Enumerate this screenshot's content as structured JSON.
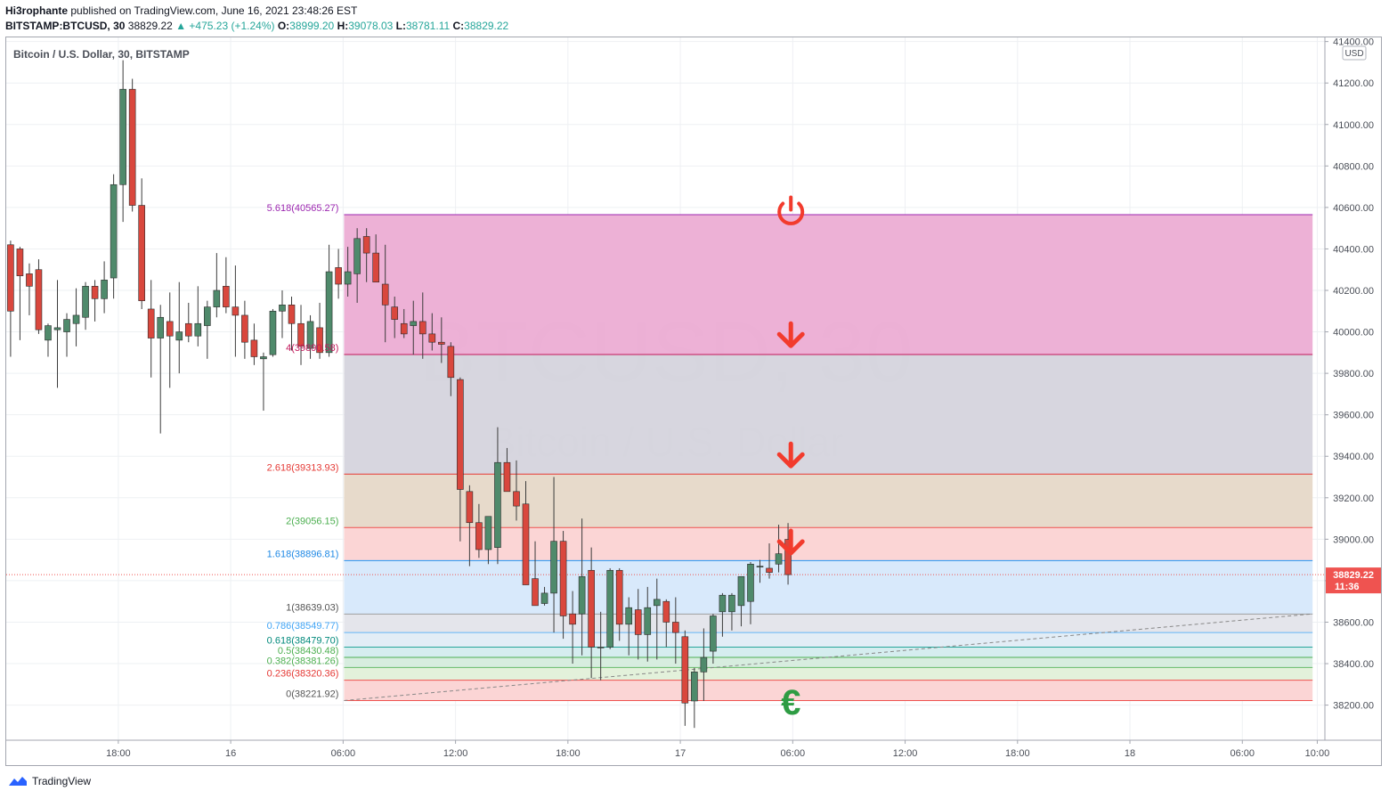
{
  "header": {
    "author": "Hi3rophante",
    "published": "published on TradingView.com, June 16, 2021 23:48:26 EST",
    "symbol": "BITSTAMP:BTCUSD, 30",
    "last": "38829.22",
    "change": "▲ +475.23 (+1.24%)",
    "o_label": "O:",
    "o": "38999.20",
    "h_label": "H:",
    "h": "39078.03",
    "l_label": "L:",
    "l": "38781.11",
    "c_label": "C:",
    "c": "38829.22"
  },
  "footer": {
    "brand": "TradingView"
  },
  "chart_data": {
    "type": "candlestick",
    "legend_title": "Bitcoin / U.S. Dollar, 30, BITSTAMP",
    "watermark": {
      "symbol": "BTCUSD, 30",
      "name": "Bitcoin / U.S. Dollar"
    },
    "currency": "USD",
    "y_range": [
      38000,
      41450
    ],
    "y_ticks": [
      38200,
      38400,
      38600,
      38800,
      39000,
      39200,
      39400,
      39600,
      39800,
      40000,
      40200,
      40400,
      40600,
      40800,
      41000,
      41200,
      41400
    ],
    "y_tick_labels": [
      "38200.00",
      "38400.00",
      "38600.00",
      "38800.00",
      "39000.00",
      "39200.00",
      "39400.00",
      "39600.00",
      "39800.00",
      "40000.00",
      "40200.00",
      "40400.00",
      "40600.00",
      "40800.00",
      "41000.00",
      "41200.00",
      "41400.00"
    ],
    "x_ticks": [
      {
        "bar": 11.5,
        "label": "18:00"
      },
      {
        "bar": 23.5,
        "label": "16"
      },
      {
        "bar": 35.5,
        "label": "06:00"
      },
      {
        "bar": 47.5,
        "label": "12:00"
      },
      {
        "bar": 59.5,
        "label": "18:00"
      },
      {
        "bar": 71.5,
        "label": "17"
      },
      {
        "bar": 83.5,
        "label": "06:00"
      },
      {
        "bar": 95.5,
        "label": "12:00"
      },
      {
        "bar": 107.5,
        "label": "18:00"
      },
      {
        "bar": 119.5,
        "label": "18"
      },
      {
        "bar": 131.5,
        "label": "06:00"
      },
      {
        "bar": 139.5,
        "label": "10:00"
      }
    ],
    "last_price": {
      "value": 38829.22,
      "label": "38829.22",
      "countdown": "11:36",
      "color": "#ef5350"
    },
    "up_color": "#4f8a6b",
    "down_color": "#d9473d",
    "candles": [
      [
        40420,
        40440,
        39880,
        40100
      ],
      [
        40400,
        40410,
        39960,
        40270
      ],
      [
        40280,
        40330,
        40080,
        40220
      ],
      [
        40300,
        40350,
        39990,
        40010
      ],
      [
        39960,
        40040,
        39880,
        40030
      ],
      [
        40010,
        40250,
        39730,
        40020
      ],
      [
        40000,
        40090,
        39880,
        40060
      ],
      [
        40040,
        40210,
        39930,
        40080
      ],
      [
        40070,
        40240,
        40010,
        40220
      ],
      [
        40220,
        40250,
        40050,
        40160
      ],
      [
        40160,
        40340,
        40090,
        40250
      ],
      [
        40260,
        40760,
        40160,
        40710
      ],
      [
        40710,
        41310,
        40530,
        41170
      ],
      [
        41170,
        41220,
        40580,
        40610
      ],
      [
        40610,
        40740,
        40110,
        40150
      ],
      [
        40110,
        40250,
        39780,
        39970
      ],
      [
        39970,
        40130,
        39510,
        40070
      ],
      [
        40050,
        40190,
        39730,
        39980
      ],
      [
        39960,
        40240,
        39800,
        40000
      ],
      [
        40040,
        40140,
        39950,
        39980
      ],
      [
        39980,
        40220,
        39930,
        40040
      ],
      [
        40030,
        40150,
        39870,
        40120
      ],
      [
        40120,
        40380,
        40070,
        40200
      ],
      [
        40220,
        40360,
        40090,
        40120
      ],
      [
        40120,
        40320,
        39880,
        40080
      ],
      [
        40080,
        40150,
        39870,
        39950
      ],
      [
        39960,
        40040,
        39840,
        39880
      ],
      [
        39870,
        39900,
        39620,
        39880
      ],
      [
        39890,
        40110,
        39880,
        40100
      ],
      [
        40100,
        40200,
        39970,
        40130
      ],
      [
        40130,
        40170,
        39910,
        40040
      ],
      [
        40040,
        40130,
        39840,
        39930
      ],
      [
        39920,
        40080,
        39870,
        40050
      ],
      [
        40020,
        40140,
        39870,
        39900
      ],
      [
        39900,
        40420,
        39880,
        40290
      ],
      [
        40310,
        40400,
        40160,
        40230
      ],
      [
        40230,
        40410,
        40170,
        40290
      ],
      [
        40280,
        40500,
        40140,
        40450
      ],
      [
        40460,
        40500,
        40240,
        40380
      ],
      [
        40380,
        40470,
        40240,
        40240
      ],
      [
        40230,
        40420,
        39950,
        40130
      ],
      [
        40120,
        40170,
        39970,
        40060
      ],
      [
        40040,
        40110,
        39970,
        39990
      ],
      [
        40030,
        40150,
        39890,
        40050
      ],
      [
        40050,
        40190,
        39870,
        39990
      ],
      [
        39990,
        40090,
        39910,
        39950
      ],
      [
        39950,
        40070,
        39850,
        39940
      ],
      [
        39930,
        39950,
        39690,
        39780
      ],
      [
        39770,
        39780,
        38990,
        39240
      ],
      [
        39230,
        39260,
        38870,
        39080
      ],
      [
        39080,
        39170,
        38910,
        38950
      ],
      [
        38950,
        39110,
        38880,
        39110
      ],
      [
        38960,
        39540,
        38880,
        39370
      ],
      [
        39370,
        39440,
        39230,
        39230
      ],
      [
        39230,
        39380,
        39090,
        39160
      ],
      [
        39170,
        39280,
        38780,
        38780
      ],
      [
        38810,
        38990,
        38680,
        38680
      ],
      [
        38690,
        38770,
        38680,
        38740
      ],
      [
        38740,
        39300,
        38550,
        38990
      ],
      [
        38990,
        39040,
        38520,
        38630
      ],
      [
        38640,
        38750,
        38400,
        38590
      ],
      [
        38640,
        39100,
        38440,
        38820
      ],
      [
        38850,
        38960,
        38330,
        38480
      ],
      [
        38480,
        38650,
        38320,
        38480
      ],
      [
        38480,
        38860,
        38470,
        38850
      ],
      [
        38850,
        38860,
        38510,
        38590
      ],
      [
        38590,
        38720,
        38440,
        38670
      ],
      [
        38660,
        38760,
        38420,
        38540
      ],
      [
        38540,
        38770,
        38410,
        38670
      ],
      [
        38680,
        38810,
        38420,
        38710
      ],
      [
        38700,
        38710,
        38480,
        38600
      ],
      [
        38600,
        38720,
        38400,
        38550
      ],
      [
        38530,
        38560,
        38100,
        38210
      ],
      [
        38220,
        38380,
        38090,
        38360
      ],
      [
        38360,
        38570,
        38220,
        38430
      ],
      [
        38460,
        38640,
        38400,
        38630
      ],
      [
        38650,
        38740,
        38530,
        38730
      ],
      [
        38650,
        38740,
        38560,
        38730
      ],
      [
        38680,
        38790,
        38580,
        38820
      ],
      [
        38700,
        38890,
        38590,
        38880
      ],
      [
        38870,
        38900,
        38790,
        38870
      ],
      [
        38860,
        38980,
        38810,
        38840
      ],
      [
        38880,
        39070,
        38840,
        38930
      ],
      [
        38999.2,
        39078.03,
        38781.11,
        38829.22
      ]
    ],
    "fib_levels": [
      {
        "ratio": "0",
        "value": 38221.92,
        "label": "0(38221.92)",
        "line_color": "#ef5350",
        "text_color": "#555555",
        "fill_above": "#fbd3d3"
      },
      {
        "ratio": "0.236",
        "value": 38320.36,
        "label": "0.236(38320.36)",
        "line_color": "#ef5350",
        "text_color": "#e53935",
        "fill_above": "#e2f0d9"
      },
      {
        "ratio": "0.382",
        "value": 38381.26,
        "label": "0.382(38381.26)",
        "line_color": "#66bb6a",
        "text_color": "#4caf50",
        "fill_above": "#d5ecdd"
      },
      {
        "ratio": "0.5",
        "value": 38430.48,
        "label": "0.5(38430.48)",
        "line_color": "#4caf50",
        "text_color": "#4caf50",
        "fill_above": "#d3ecee"
      },
      {
        "ratio": "0.618",
        "value": 38479.7,
        "label": "0.618(38479.70)",
        "line_color": "#26a69a",
        "text_color": "#00897b",
        "fill_above": "#e0ecf6"
      },
      {
        "ratio": "0.786",
        "value": 38549.77,
        "label": "0.786(38549.77)",
        "line_color": "#64b5f6",
        "text_color": "#42a5f5",
        "fill_above": "#e3e4ea"
      },
      {
        "ratio": "1",
        "value": 38639.03,
        "label": "1(38639.03)",
        "line_color": "#9e9e9e",
        "text_color": "#555555",
        "fill_above": "#d6e8fb"
      },
      {
        "ratio": "1.618",
        "value": 38896.81,
        "label": "1.618(38896.81)",
        "line_color": "#2196f3",
        "text_color": "#1e88e5",
        "fill_above": "#fbd3d3"
      },
      {
        "ratio": "2",
        "value": 39056.15,
        "label": "2(39056.15)",
        "line_color": "#ef5350",
        "text_color": "#4caf50",
        "fill_above": "#e6d8c8"
      },
      {
        "ratio": "2.618",
        "value": 39313.93,
        "label": "2.618(39313.93)",
        "line_color": "#e53935",
        "text_color": "#e53935",
        "fill_above": "#d5d4dd"
      },
      {
        "ratio": "4",
        "value": 39890.58,
        "label": "4(39890.58)",
        "line_color": "#c2185b",
        "text_color": "#c2185b",
        "fill_above": "#ecadd4"
      },
      {
        "ratio": "5.618",
        "value": 40565.27,
        "label": "5.618(40565.27)",
        "line_color": "#9c27b0",
        "text_color": "#9c27b0",
        "fill_above": null
      }
    ],
    "fib_start_bar": 35.6,
    "fib_end_bar": 139.0,
    "trend_line": {
      "from": [
        35.6,
        38221.92
      ],
      "to": [
        139.0,
        38640
      ],
      "color": "#888888"
    },
    "markers": [
      {
        "icon": "power-icon",
        "bar": 83.3,
        "price": 40580,
        "color": "#f23b2d"
      },
      {
        "icon": "arrow-down-icon",
        "bar": 83.3,
        "price": 39980,
        "color": "#f23b2d"
      },
      {
        "icon": "arrow-down-icon",
        "bar": 83.3,
        "price": 39400,
        "color": "#f23b2d"
      },
      {
        "icon": "arrow-down-icon",
        "bar": 83.3,
        "price": 38980,
        "color": "#f23b2d"
      },
      {
        "icon": "euro-icon",
        "bar": 83.3,
        "price": 38225,
        "color": "#2e9c43"
      }
    ]
  }
}
